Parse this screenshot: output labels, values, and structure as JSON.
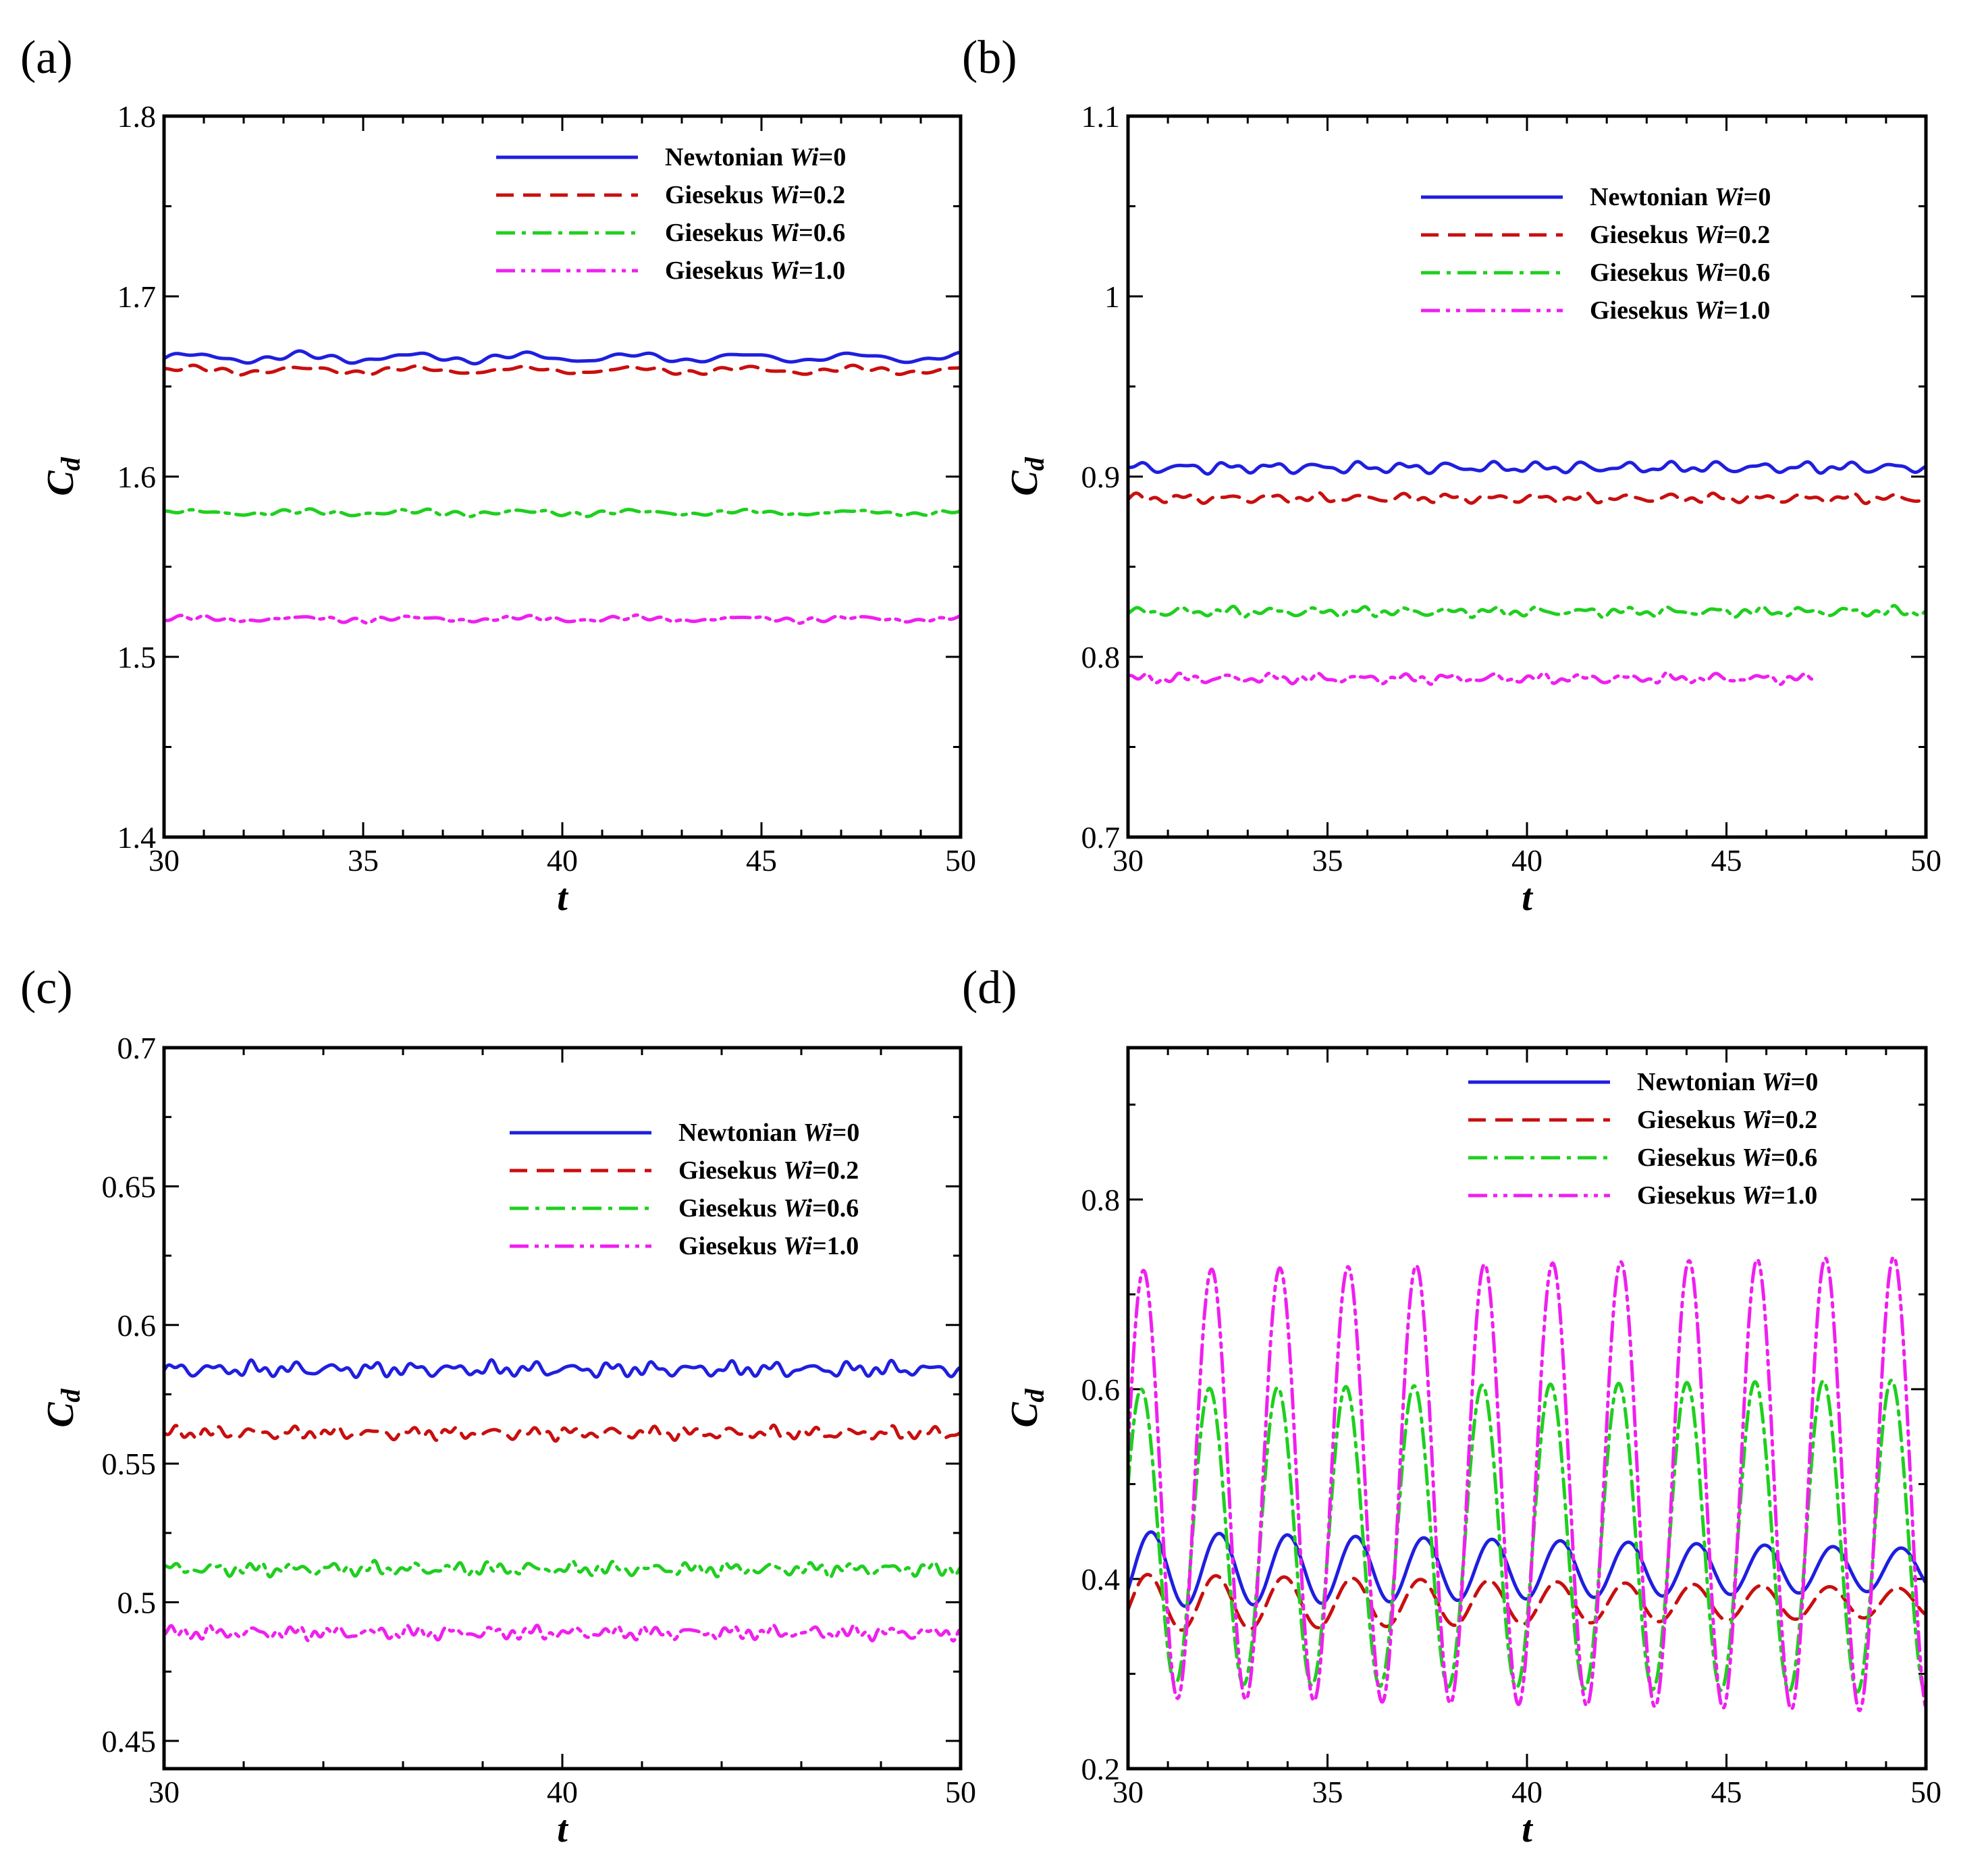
{
  "figure": {
    "panel_labels": [
      "(a)",
      "(b)",
      "(c)",
      "(d)"
    ]
  },
  "legend_entries": [
    {
      "prefix": "Newtonian ",
      "wi": "Wi",
      "suffix": "=0",
      "color": "#1f1fdf",
      "dash": "solid"
    },
    {
      "prefix": "Giesekus ",
      "wi": "Wi",
      "suffix": "=0.2",
      "color": "#c80f0f",
      "dash": "dash"
    },
    {
      "prefix": "Giesekus ",
      "wi": "Wi",
      "suffix": "=0.6",
      "color": "#1fcf1f",
      "dash": "dashdot"
    },
    {
      "prefix": "Giesekus ",
      "wi": "Wi",
      "suffix": "=1.0",
      "color": "#ef1fef",
      "dash": "dashdotdot"
    }
  ],
  "chart_data": [
    {
      "type": "line",
      "panel": "(a)",
      "xlabel": "t",
      "ylabel": "C_d",
      "xlim": [
        30,
        50
      ],
      "ylim": [
        1.4,
        1.8
      ],
      "xticks": [
        30,
        35,
        40,
        45,
        50
      ],
      "xtick_labels": [
        "30",
        "35",
        "40",
        "45",
        "50"
      ],
      "yticks": [
        1.4,
        1.5,
        1.6,
        1.7,
        1.8
      ],
      "ytick_labels": [
        "1.4",
        "1.5",
        "1.6",
        "1.7",
        "1.8"
      ],
      "legend_position": "top-right",
      "series": [
        {
          "name": "Newtonian Wi=0",
          "mean": 1.666,
          "amp": 0.002,
          "freq": 0.36,
          "noise": 0.0015,
          "t_end": 50
        },
        {
          "name": "Giesekus Wi=0.2",
          "mean": 1.659,
          "amp": 0.0015,
          "freq": 0.36,
          "noise": 0.0012,
          "t_end": 50
        },
        {
          "name": "Giesekus Wi=0.6",
          "mean": 1.58,
          "amp": 0.001,
          "freq": 0.36,
          "noise": 0.0012,
          "t_end": 50
        },
        {
          "name": "Giesekus Wi=1.0",
          "mean": 1.521,
          "amp": 0.001,
          "freq": 0.36,
          "noise": 0.0012,
          "t_end": 50
        }
      ]
    },
    {
      "type": "line",
      "panel": "(b)",
      "xlabel": "t",
      "ylabel": "C_d",
      "xlim": [
        30,
        50
      ],
      "ylim": [
        0.7,
        1.1
      ],
      "xticks": [
        30,
        35,
        40,
        45,
        50
      ],
      "xtick_labels": [
        "30",
        "35",
        "40",
        "45",
        "50"
      ],
      "yticks": [
        0.7,
        0.8,
        0.9,
        1.0,
        1.1
      ],
      "ytick_labels": [
        "0.7",
        "0.8",
        "0.9",
        "1",
        "1.1"
      ],
      "legend_position": "top-right",
      "series": [
        {
          "name": "Newtonian Wi=0",
          "mean": 0.905,
          "amp": 0.002,
          "freq": 0.9,
          "noise": 0.0018,
          "t_end": 50
        },
        {
          "name": "Giesekus Wi=0.2",
          "mean": 0.888,
          "amp": 0.0015,
          "freq": 0.9,
          "noise": 0.0016,
          "t_end": 50
        },
        {
          "name": "Giesekus Wi=0.6",
          "mean": 0.825,
          "amp": 0.0015,
          "freq": 0.9,
          "noise": 0.0018,
          "t_end": 50
        },
        {
          "name": "Giesekus Wi=1.0",
          "mean": 0.788,
          "amp": 0.0015,
          "freq": 0.9,
          "noise": 0.0018,
          "t_end": 47.2
        }
      ]
    },
    {
      "type": "line",
      "panel": "(c)",
      "xlabel": "t",
      "ylabel": "C_d",
      "xlim": [
        30,
        50
      ],
      "ylim": [
        0.44,
        0.7
      ],
      "xticks": [
        30,
        40,
        50
      ],
      "xtick_labels": [
        "30",
        "40",
        "50"
      ],
      "yticks": [
        0.45,
        0.5,
        0.55,
        0.6,
        0.65,
        0.7
      ],
      "ytick_labels": [
        "0.45",
        "0.5",
        "0.55",
        "0.6",
        "0.65",
        "0.7"
      ],
      "legend_position": "top-right",
      "series": [
        {
          "name": "Newtonian Wi=0",
          "mean": 0.584,
          "amp": 0.0015,
          "freq": 1.0,
          "noise": 0.0018,
          "t_end": 50
        },
        {
          "name": "Giesekus Wi=0.2",
          "mean": 0.561,
          "amp": 0.0012,
          "freq": 1.0,
          "noise": 0.0016,
          "t_end": 50
        },
        {
          "name": "Giesekus Wi=0.6",
          "mean": 0.512,
          "amp": 0.0012,
          "freq": 1.0,
          "noise": 0.0018,
          "t_end": 50
        },
        {
          "name": "Giesekus Wi=1.0",
          "mean": 0.489,
          "amp": 0.0012,
          "freq": 1.0,
          "noise": 0.0018,
          "t_end": 50
        }
      ]
    },
    {
      "type": "line",
      "panel": "(d)",
      "xlabel": "t",
      "ylabel": "C_d",
      "xlim": [
        30,
        50
      ],
      "ylim": [
        0.2,
        0.96
      ],
      "xticks": [
        30,
        35,
        40,
        45,
        50
      ],
      "xtick_labels": [
        "30",
        "35",
        "40",
        "45",
        "50"
      ],
      "yticks": [
        0.2,
        0.4,
        0.6,
        0.8
      ],
      "ytick_labels": [
        "0.2",
        "0.4",
        "0.6",
        "0.8"
      ],
      "legend_position": "top-right",
      "series": [
        {
          "name": "Newtonian Wi=0",
          "mean": 0.41,
          "amp": 0.04,
          "amp_end": 0.022,
          "freq": 0.585,
          "phase": -0.55,
          "t_end": 50
        },
        {
          "name": "Giesekus Wi=0.2",
          "mean": 0.375,
          "amp": 0.03,
          "amp_end": 0.015,
          "freq": 0.585,
          "phase": -0.25,
          "t_end": 50
        },
        {
          "name": "Giesekus Wi=0.6",
          "mean": 0.445,
          "amp": 0.155,
          "amp_end": 0.165,
          "freq": 0.585,
          "phase": 0.35,
          "t_end": 50
        },
        {
          "name": "Giesekus Wi=1.0",
          "mean": 0.5,
          "amp": 0.225,
          "amp_end": 0.24,
          "freq": 0.585,
          "phase": 0.15,
          "t_end": 50
        }
      ]
    }
  ]
}
